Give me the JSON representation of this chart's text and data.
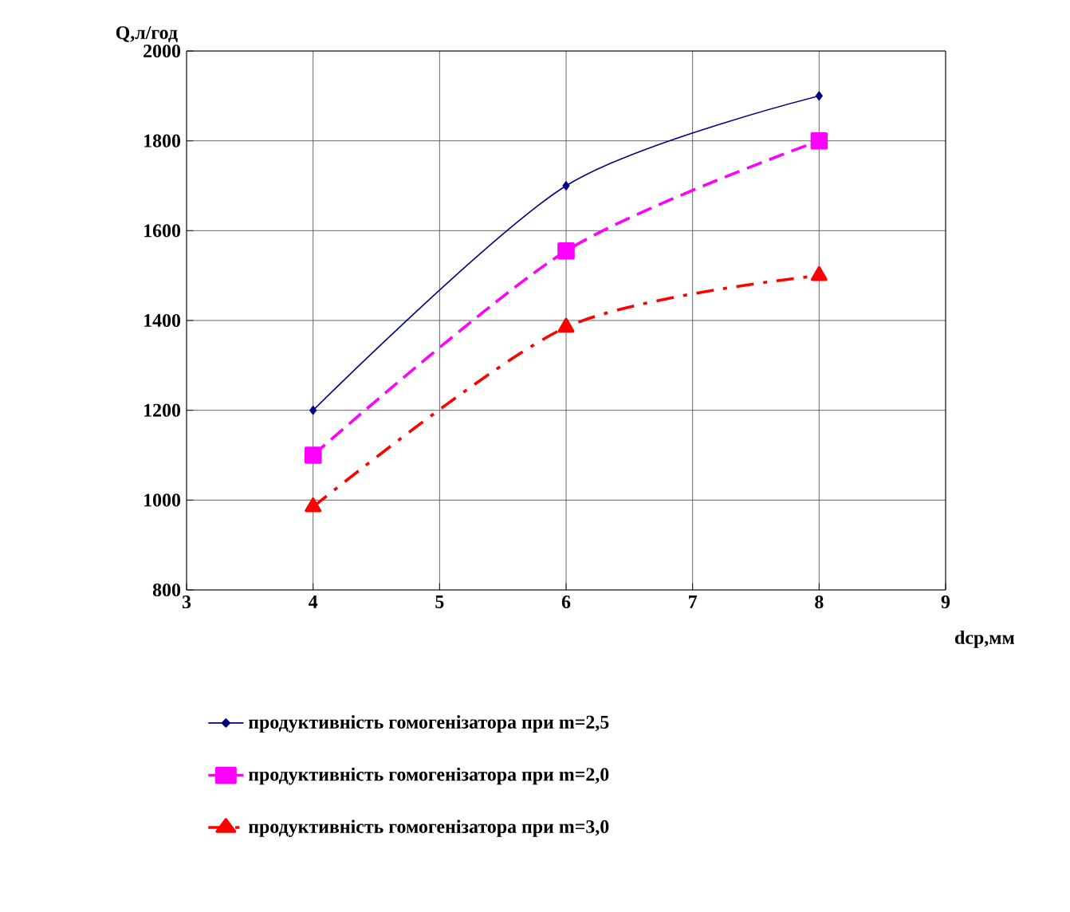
{
  "chart_data": {
    "type": "line",
    "xlabel": "dcp,мм",
    "ylabel": "Q,л/год",
    "x": [
      4,
      6,
      8
    ],
    "series": [
      {
        "name": "продуктивність гомогенізатора при m=2,5",
        "color": "#000080",
        "values": [
          1200,
          1700,
          1900
        ],
        "marker": "diamond",
        "line_style": "solid"
      },
      {
        "name": "продуктивність гомогенізатора при m=2,0",
        "color": "#ff00ff",
        "values": [
          1100,
          1555,
          1800
        ],
        "marker": "square",
        "line_style": "dashed"
      },
      {
        "name": "продуктивність гомогенізатора при m=3,0",
        "color": "#ff0000",
        "values": [
          985,
          1385,
          1500
        ],
        "marker": "triangle",
        "line_style": "dashdot"
      }
    ],
    "xlim": [
      3,
      9
    ],
    "xticks": [
      3,
      4,
      5,
      6,
      7,
      8,
      9
    ],
    "ylim": [
      800,
      2000
    ],
    "yticks": [
      800,
      1000,
      1200,
      1400,
      1600,
      1800,
      2000
    ],
    "grid": true,
    "legend": "bottom"
  }
}
